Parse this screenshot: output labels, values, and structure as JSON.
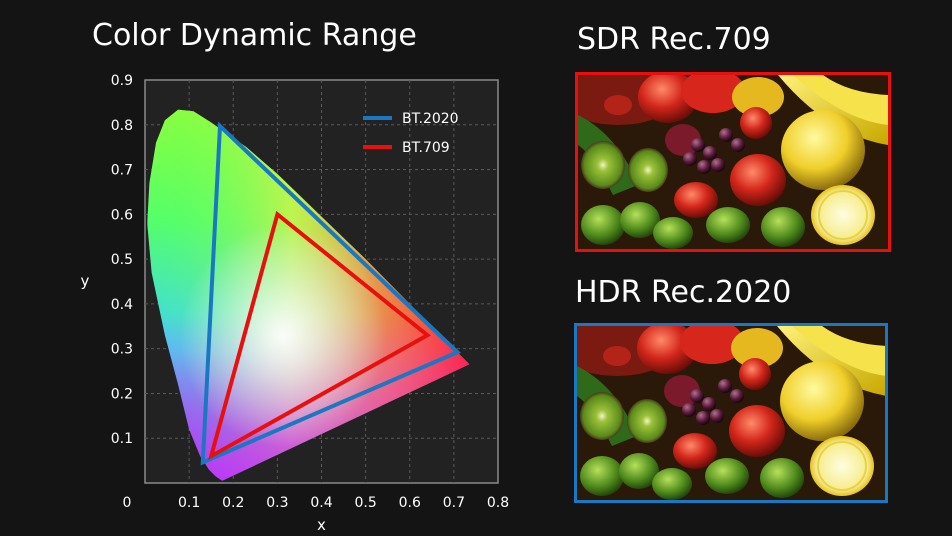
{
  "page": {
    "chart_title": "Color Dynamic Range",
    "sdr_title": "SDR Rec.709",
    "hdr_title": "HDR Rec.2020"
  },
  "colors": {
    "background": "#141414",
    "plot_background": "#222222",
    "bt2020": "#1a78c2",
    "bt709": "#e8100f"
  },
  "photos": [
    {
      "name": "sdr-photo",
      "border_color": "#e8100f",
      "subject": "fruit-and-vegetables-photo",
      "grading": "sdr"
    },
    {
      "name": "hdr-photo",
      "border_color": "#1a78c2",
      "subject": "fruit-and-vegetables-photo",
      "grading": "hdr"
    }
  ],
  "chart_data": {
    "type": "scatter",
    "title": "Color Dynamic Range",
    "xlabel": "x",
    "ylabel": "y",
    "xlim": [
      0,
      0.8
    ],
    "ylim": [
      0,
      0.9
    ],
    "xticks": [
      "0",
      "0.1",
      "0.2",
      "0.3",
      "0.4",
      "0.5",
      "0.6",
      "0.7",
      "0.8"
    ],
    "yticks": [
      "0.1",
      "0.2",
      "0.3",
      "0.4",
      "0.5",
      "0.6",
      "0.7",
      "0.8",
      "0.9"
    ],
    "grid": true,
    "legend_position": "top-right",
    "series": [
      {
        "name": "BT.2020",
        "color": "#1a78c2",
        "points": [
          [
            0.708,
            0.292
          ],
          [
            0.17,
            0.797
          ],
          [
            0.131,
            0.046
          ]
        ]
      },
      {
        "name": "BT.709",
        "color": "#e8100f",
        "points": [
          [
            0.64,
            0.33
          ],
          [
            0.3,
            0.6
          ],
          [
            0.15,
            0.06
          ]
        ]
      }
    ],
    "locus": [
      [
        0.175,
        0.005
      ],
      [
        0.16,
        0.015
      ],
      [
        0.145,
        0.03
      ],
      [
        0.125,
        0.06
      ],
      [
        0.1,
        0.12
      ],
      [
        0.075,
        0.22
      ],
      [
        0.045,
        0.33
      ],
      [
        0.015,
        0.47
      ],
      [
        0.005,
        0.58
      ],
      [
        0.01,
        0.67
      ],
      [
        0.025,
        0.76
      ],
      [
        0.045,
        0.81
      ],
      [
        0.075,
        0.834
      ],
      [
        0.11,
        0.83
      ],
      [
        0.15,
        0.805
      ],
      [
        0.23,
        0.75
      ],
      [
        0.3,
        0.69
      ],
      [
        0.4,
        0.595
      ],
      [
        0.5,
        0.5
      ],
      [
        0.6,
        0.4
      ],
      [
        0.7,
        0.3
      ],
      [
        0.735,
        0.265
      ]
    ]
  }
}
